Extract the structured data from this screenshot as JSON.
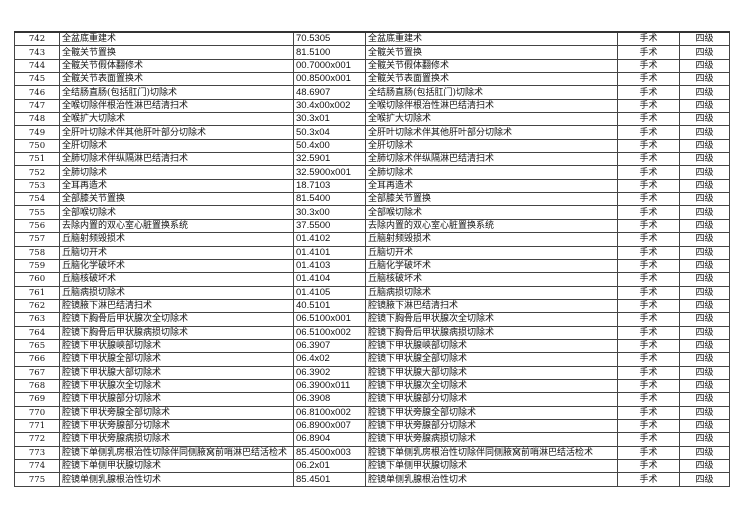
{
  "rows": [
    [
      "742",
      "全盆底重建术",
      "70.5305",
      "全盆底重建术",
      "手术",
      "四级"
    ],
    [
      "743",
      "全髋关节置换",
      "81.5100",
      "全髋关节置换",
      "手术",
      "四级"
    ],
    [
      "744",
      "全髋关节假体翻修术",
      "00.7000x001",
      "全髋关节假体翻修术",
      "手术",
      "四级"
    ],
    [
      "745",
      "全髋关节表面置换术",
      "00.8500x001",
      "全髋关节表面置换术",
      "手术",
      "四级"
    ],
    [
      "746",
      "全结肠直肠(包括肛门)切除术",
      "48.6907",
      "全结肠直肠(包括肛门)切除术",
      "手术",
      "四级"
    ],
    [
      "747",
      "全喉切除伴根治性淋巴结清扫术",
      "30.4x00x002",
      "全喉切除伴根治性淋巴结清扫术",
      "手术",
      "四级"
    ],
    [
      "748",
      "全喉扩大切除术",
      "30.3x01",
      "全喉扩大切除术",
      "手术",
      "四级"
    ],
    [
      "749",
      "全肝叶切除术伴其他肝叶部分切除术",
      "50.3x04",
      "全肝叶切除术伴其他肝叶部分切除术",
      "手术",
      "四级"
    ],
    [
      "750",
      "全肝切除术",
      "50.4x00",
      "全肝切除术",
      "手术",
      "四级"
    ],
    [
      "751",
      "全肺切除术伴纵隔淋巴结清扫术",
      "32.5901",
      "全肺切除术伴纵隔淋巴结清扫术",
      "手术",
      "四级"
    ],
    [
      "752",
      "全肺切除术",
      "32.5900x001",
      "全肺切除术",
      "手术",
      "四级"
    ],
    [
      "753",
      "全耳再造术",
      "18.7103",
      "全耳再造术",
      "手术",
      "四级"
    ],
    [
      "754",
      "全部膝关节置换",
      "81.5400",
      "全部膝关节置换",
      "手术",
      "四级"
    ],
    [
      "755",
      "全部喉切除术",
      "30.3x00",
      "全部喉切除术",
      "手术",
      "四级"
    ],
    [
      "756",
      "去除内置的双心室心脏置换系统",
      "37.5500",
      "去除内置的双心室心脏置换系统",
      "手术",
      "四级"
    ],
    [
      "757",
      "丘脑射频毁损术",
      "01.4102",
      "丘脑射频毁损术",
      "手术",
      "四级"
    ],
    [
      "758",
      "丘脑切开术",
      "01.4101",
      "丘脑切开术",
      "手术",
      "四级"
    ],
    [
      "759",
      "丘脑化学破坏术",
      "01.4103",
      "丘脑化学破坏术",
      "手术",
      "四级"
    ],
    [
      "760",
      "丘脑核破坏术",
      "01.4104",
      "丘脑核破坏术",
      "手术",
      "四级"
    ],
    [
      "761",
      "丘脑病损切除术",
      "01.4105",
      "丘脑病损切除术",
      "手术",
      "四级"
    ],
    [
      "762",
      "腔镜腋下淋巴结清扫术",
      "40.5101",
      "腔镜腋下淋巴结清扫术",
      "手术",
      "四级"
    ],
    [
      "763",
      "腔镜下胸骨后甲状腺次全切除术",
      "06.5100x001",
      "腔镜下胸骨后甲状腺次全切除术",
      "手术",
      "四级"
    ],
    [
      "764",
      "腔镜下胸骨后甲状腺病损切除术",
      "06.5100x002",
      "腔镜下胸骨后甲状腺病损切除术",
      "手术",
      "四级"
    ],
    [
      "765",
      "腔镜下甲状腺峡部切除术",
      "06.3907",
      "腔镜下甲状腺峡部切除术",
      "手术",
      "四级"
    ],
    [
      "766",
      "腔镜下甲状腺全部切除术",
      "06.4x02",
      "腔镜下甲状腺全部切除术",
      "手术",
      "四级"
    ],
    [
      "767",
      "腔镜下甲状腺大部切除术",
      "06.3902",
      "腔镜下甲状腺大部切除术",
      "手术",
      "四级"
    ],
    [
      "768",
      "腔镜下甲状腺次全切除术",
      "06.3900x011",
      "腔镜下甲状腺次全切除术",
      "手术",
      "四级"
    ],
    [
      "769",
      "腔镜下甲状腺部分切除术",
      "06.3908",
      "腔镜下甲状腺部分切除术",
      "手术",
      "四级"
    ],
    [
      "770",
      "腔镜下甲状旁腺全部切除术",
      "06.8100x002",
      "腔镜下甲状旁腺全部切除术",
      "手术",
      "四级"
    ],
    [
      "771",
      "腔镜下甲状旁腺部分切除术",
      "06.8900x007",
      "腔镜下甲状旁腺部分切除术",
      "手术",
      "四级"
    ],
    [
      "772",
      "腔镜下甲状旁腺病损切除术",
      "06.8904",
      "腔镜下甲状旁腺病损切除术",
      "手术",
      "四级"
    ],
    [
      "773",
      "腔镜下单侧乳房根治性切除伴同侧腋窝前哨淋巴结活检术",
      "85.4500x003",
      "腔镜下单侧乳房根治性切除伴同侧腋窝前哨淋巴结活检术",
      "手术",
      "四级"
    ],
    [
      "774",
      "腔镜下单侧甲状腺切除术",
      "06.2x01",
      "腔镜下单侧甲状腺切除术",
      "手术",
      "四级"
    ],
    [
      "775",
      "腔镜单侧乳腺根治性切术",
      "85.4501",
      "腔镜单侧乳腺根治性切术",
      "手术",
      "四级"
    ]
  ]
}
